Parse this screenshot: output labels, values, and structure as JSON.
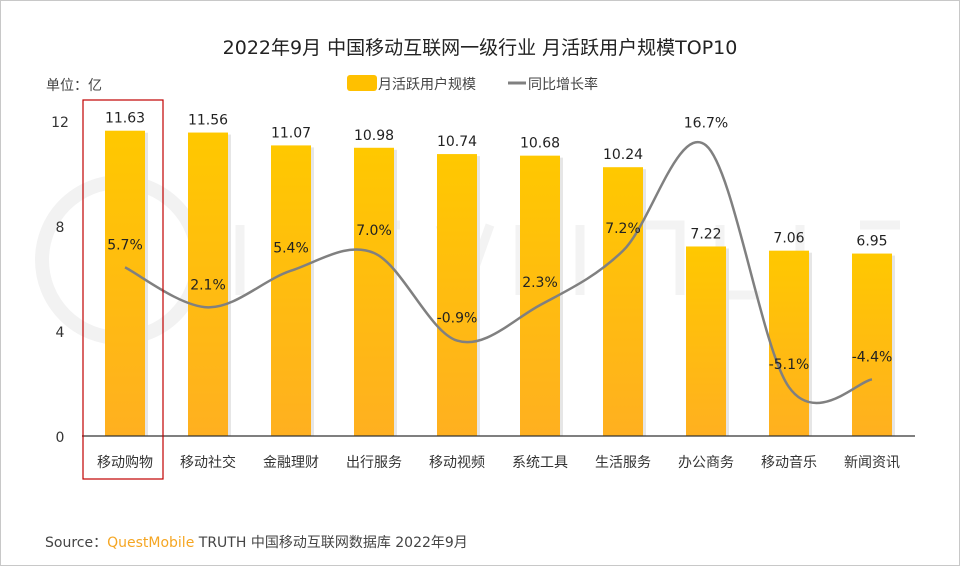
{
  "chart_data": {
    "type": "bar+line",
    "title": "2022年9月 中国移动互联网一级行业 月活跃用户规模TOP10",
    "unit_label": "单位：亿",
    "categories": [
      "移动购物",
      "移动社交",
      "金融理财",
      "出行服务",
      "移动视频",
      "系统工具",
      "生活服务",
      "办公商务",
      "移动音乐",
      "新闻资讯"
    ],
    "series": [
      {
        "name": "月活跃用户规模",
        "type": "bar",
        "color": "#ffc000",
        "values": [
          11.63,
          11.56,
          11.07,
          10.98,
          10.74,
          10.68,
          10.24,
          7.22,
          7.06,
          6.95
        ],
        "labels": [
          "11.63",
          "11.56",
          "11.07",
          "10.98",
          "10.74",
          "10.68",
          "10.24",
          "7.22",
          "7.06",
          "6.95"
        ]
      },
      {
        "name": "同比增长率",
        "type": "line",
        "color": "#808080",
        "values": [
          5.7,
          2.1,
          5.4,
          7.0,
          -0.9,
          2.3,
          7.2,
          16.7,
          -5.1,
          -4.4
        ],
        "labels": [
          "5.7%",
          "2.1%",
          "5.4%",
          "7.0%",
          "-0.9%",
          "2.3%",
          "7.2%",
          "16.7%",
          "-5.1%",
          "-4.4%"
        ]
      }
    ],
    "ylim": [
      0,
      12
    ],
    "yticks": [
      "0",
      "4",
      "8",
      "12"
    ],
    "ytick_values": [
      0,
      4,
      8,
      12
    ],
    "y2lim": [
      -9.5,
      18.9
    ],
    "y2_visible": false,
    "grid": false,
    "legend": "top-center",
    "highlighted_category": "移动购物",
    "watermark": "QUESTMOBILE"
  },
  "source": {
    "prefix": "Source：",
    "brand": "QuestMobile",
    "text": " TRUTH 中国移动互联网数据库 2022年9月"
  }
}
